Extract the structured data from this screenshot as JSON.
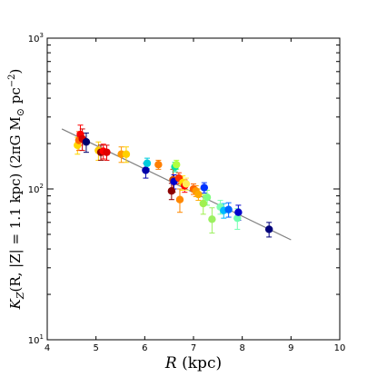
{
  "chart_data": {
    "type": "scatter",
    "title": "",
    "xlabel_math": "R",
    "xlabel_unit": " (kpc)",
    "ylabel": "K_Z(R, |Z| = 1.1 kpc)  (2πG M_⊙ pc⁻²)",
    "ylabel_parts": {
      "k": "K",
      "sub": "Z",
      "args": "(R, |Z| = 1.1 kpc)",
      "units_pre": "(2πG M",
      "units_sun": "⊙",
      "units_pc": " pc",
      "units_exp": "−2",
      "units_post": ")"
    },
    "xlim": [
      4,
      10
    ],
    "ylim_log10": [
      1,
      3
    ],
    "y_scale": "log",
    "grid": false,
    "legend": "none",
    "x_ticks": [
      4,
      5,
      6,
      7,
      8,
      9,
      10
    ],
    "y_ticks": [
      {
        "value": 10,
        "base": "10",
        "exp": "1"
      },
      {
        "value": 100,
        "base": "10",
        "exp": "2"
      },
      {
        "value": 1000,
        "base": "10",
        "exp": "3"
      }
    ],
    "fit_line": {
      "x": [
        4.3,
        9.0
      ],
      "y": [
        250,
        46
      ],
      "color": "#808080"
    },
    "points": [
      {
        "x": 4.62,
        "y": 195,
        "err": 25,
        "color": "#ffd700"
      },
      {
        "x": 4.65,
        "y": 210,
        "err": 30,
        "color": "#ff6a00"
      },
      {
        "x": 4.68,
        "y": 230,
        "err": 35,
        "color": "#ff0000"
      },
      {
        "x": 4.72,
        "y": 215,
        "err": 35,
        "color": "#d40000"
      },
      {
        "x": 4.8,
        "y": 205,
        "err": 30,
        "color": "#00006e"
      },
      {
        "x": 5.05,
        "y": 180,
        "err": 25,
        "color": "#ffcc00"
      },
      {
        "x": 5.1,
        "y": 175,
        "err": 20,
        "color": "#8b0000"
      },
      {
        "x": 5.15,
        "y": 178,
        "err": 20,
        "color": "#ff0000"
      },
      {
        "x": 5.22,
        "y": 175,
        "err": 20,
        "color": "#e00000"
      },
      {
        "x": 5.52,
        "y": 170,
        "err": 20,
        "color": "#ff9900"
      },
      {
        "x": 5.62,
        "y": 170,
        "err": 20,
        "color": "#ffd000"
      },
      {
        "x": 6.02,
        "y": 133,
        "err": 15,
        "color": "#0000aa"
      },
      {
        "x": 6.05,
        "y": 148,
        "err": 12,
        "color": "#00ccdd"
      },
      {
        "x": 6.28,
        "y": 145,
        "err": 10,
        "color": "#ff7f00"
      },
      {
        "x": 6.55,
        "y": 97,
        "err": 12,
        "color": "#8b0000"
      },
      {
        "x": 6.58,
        "y": 115,
        "err": 20,
        "color": "#cc4400"
      },
      {
        "x": 6.6,
        "y": 112,
        "err": 12,
        "color": "#0000cc"
      },
      {
        "x": 6.62,
        "y": 140,
        "err": 10,
        "color": "#00e0a0"
      },
      {
        "x": 6.65,
        "y": 145,
        "err": 10,
        "color": "#b0ff40"
      },
      {
        "x": 6.7,
        "y": 118,
        "err": 10,
        "color": "#ff3300"
      },
      {
        "x": 6.72,
        "y": 85,
        "err": 15,
        "color": "#ff8800"
      },
      {
        "x": 6.78,
        "y": 110,
        "err": 12,
        "color": "#ffdd00"
      },
      {
        "x": 6.82,
        "y": 105,
        "err": 10,
        "color": "#ff0000"
      },
      {
        "x": 6.85,
        "y": 108,
        "err": 10,
        "color": "#ffee55"
      },
      {
        "x": 7.0,
        "y": 100,
        "err": 8,
        "color": "#ff6600"
      },
      {
        "x": 7.05,
        "y": 97,
        "err": 8,
        "color": "#ff9900"
      },
      {
        "x": 7.1,
        "y": 92,
        "err": 8,
        "color": "#ffaa00"
      },
      {
        "x": 7.22,
        "y": 102,
        "err": 8,
        "color": "#0033ff"
      },
      {
        "x": 7.2,
        "y": 80,
        "err": 12,
        "color": "#a0f050"
      },
      {
        "x": 7.28,
        "y": 88,
        "err": 10,
        "color": "#80ff80"
      },
      {
        "x": 7.38,
        "y": 63,
        "err": 12,
        "color": "#9cf060"
      },
      {
        "x": 7.55,
        "y": 76,
        "err": 8,
        "color": "#80ffb0"
      },
      {
        "x": 7.62,
        "y": 72,
        "err": 8,
        "color": "#00bbff"
      },
      {
        "x": 7.72,
        "y": 73,
        "err": 8,
        "color": "#0066ff"
      },
      {
        "x": 7.9,
        "y": 64,
        "err": 10,
        "color": "#70ffb0"
      },
      {
        "x": 7.92,
        "y": 70,
        "err": 8,
        "color": "#0000cc"
      },
      {
        "x": 8.55,
        "y": 54,
        "err": 6,
        "color": "#00007a"
      }
    ]
  }
}
